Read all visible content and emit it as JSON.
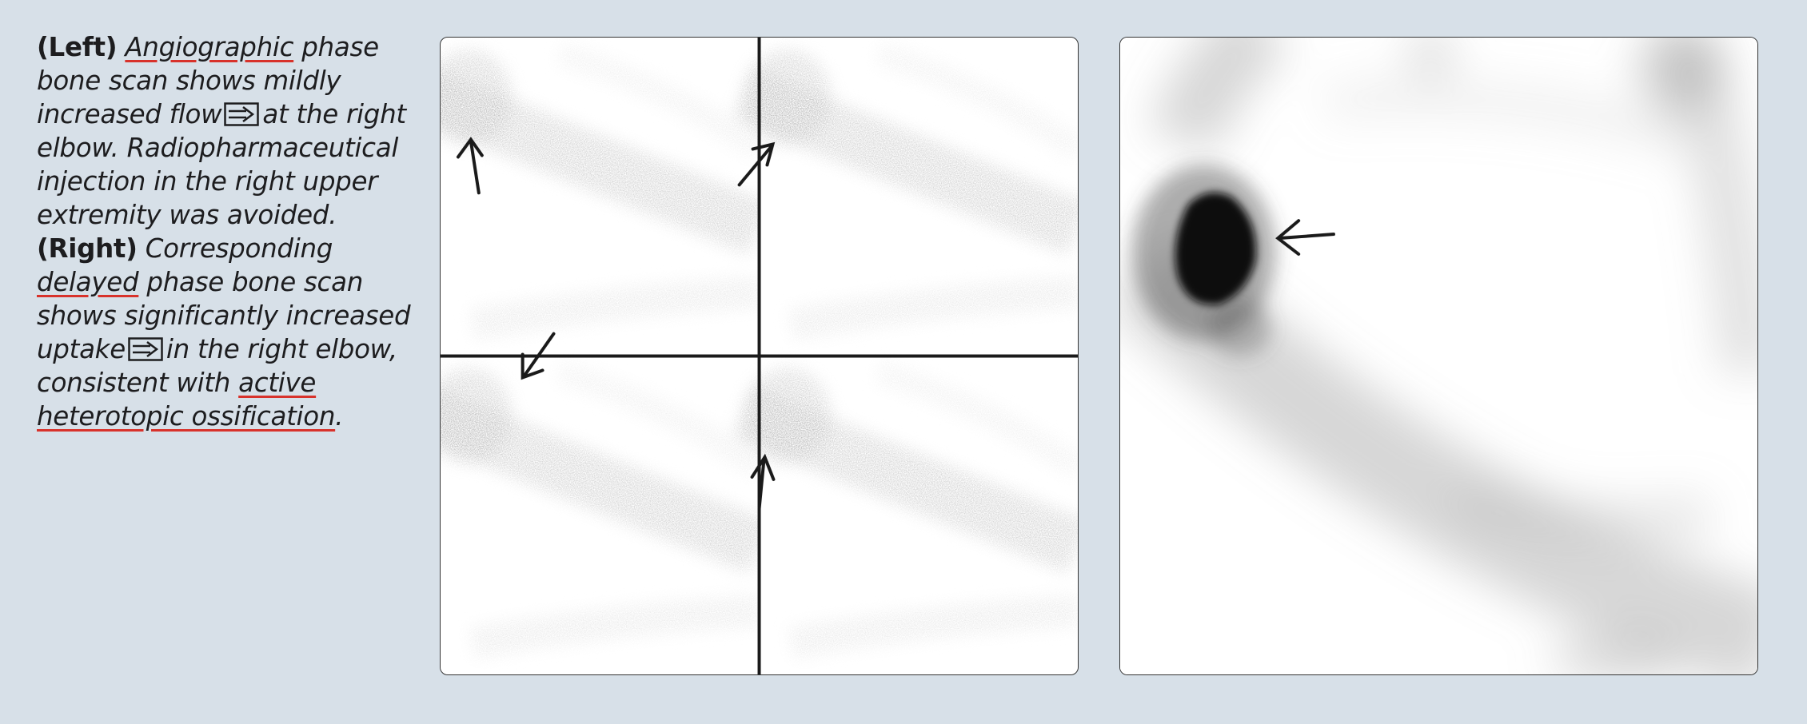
{
  "caption": {
    "label_left": "(Left)",
    "link_angiographic": "Angiographic",
    "text_1": "phase bone scan shows mildly increased flow",
    "text_2": "at the right elbow. Radiopharmaceutical injection in the right upper extremity was avoided.",
    "label_right": "(Right)",
    "text_3": "Corresponding",
    "link_delayed": "delayed",
    "text_4": "phase bone scan shows significantly increased uptake",
    "text_5": "in the right elbow, consistent with",
    "link_ossification": "active heterotopic ossification",
    "text_6": "."
  },
  "icons": {
    "inline_arrow": "right-arrow-box-icon",
    "image_arrow": "pointer-arrow-icon"
  },
  "colors": {
    "background": "#d7e0e8",
    "link_underline": "#d8322b",
    "text": "#1d1d1f"
  }
}
